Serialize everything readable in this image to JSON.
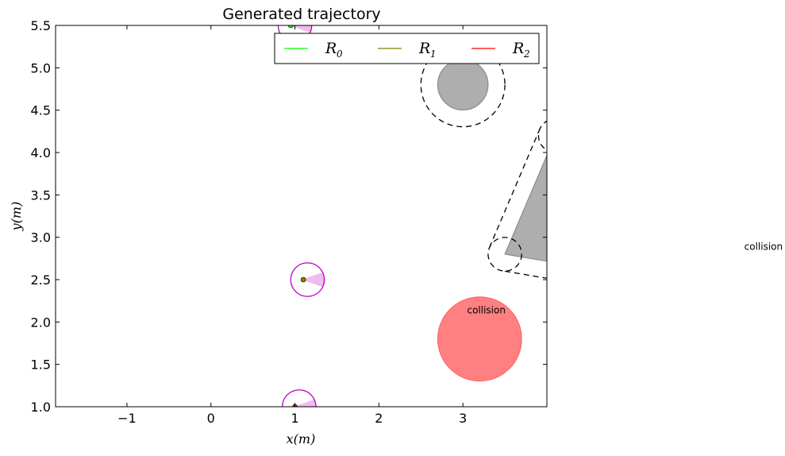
{
  "chart_data": {
    "type": "scatter",
    "title": "Generated trajectory",
    "xlabel": "x(m)",
    "ylabel": "y(m)",
    "xlim": [
      -1.85,
      4.0
    ],
    "ylim": [
      1.0,
      5.5
    ],
    "xticks": [
      -1,
      0,
      1,
      2,
      3
    ],
    "yticks": [
      1.0,
      1.5,
      2.0,
      2.5,
      3.0,
      3.5,
      4.0,
      4.5,
      5.0,
      5.5
    ],
    "xtick_labels": [
      "−1",
      "0",
      "1",
      "2",
      "3"
    ],
    "ytick_labels": [
      "1.0",
      "1.5",
      "2.0",
      "2.5",
      "3.0",
      "3.5",
      "4.0",
      "4.5",
      "5.0",
      "5.5"
    ],
    "legend": {
      "placement": "top-right",
      "entries": [
        {
          "label": "R",
          "sub": "0",
          "color": "#00ff00"
        },
        {
          "label": "R",
          "sub": "1",
          "color": "#808000"
        },
        {
          "label": "R",
          "sub": "2",
          "color": "#ff0000"
        }
      ]
    },
    "robots": [
      {
        "x": 1.05,
        "y": 1.0,
        "heading_deg": 0,
        "marker_color": "#ff0000"
      },
      {
        "x": 1.15,
        "y": 2.5,
        "heading_deg": 0,
        "marker_color": "#808000"
      },
      {
        "x": 1.0,
        "y": 5.5,
        "heading_deg": 0,
        "marker_color": "#00ff00"
      }
    ],
    "robot_radius": 0.2,
    "obstacles": {
      "circle": {
        "x": 3.0,
        "y": 4.8,
        "r": 0.3,
        "margin_r": 0.5
      },
      "triangle": [
        [
          3.5,
          2.8
        ],
        [
          4.1,
          4.2
        ],
        [
          4.1,
          2.7
        ]
      ],
      "collision_circle": {
        "x": 3.2,
        "y": 1.8,
        "r": 0.5
      }
    },
    "annotations": [
      {
        "text": "collision",
        "x": 3.05,
        "y": 2.1
      },
      {
        "text": "collision",
        "x": 6.35,
        "y": 2.85
      }
    ],
    "colors": {
      "robot_outline": "#c000c0",
      "robot_fov": "#e8a0e8",
      "obstacle": "#a0a0a0",
      "collision": "#ff8080"
    }
  }
}
